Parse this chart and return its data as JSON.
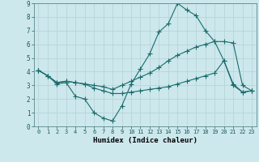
{
  "background_color": "#cce8ed",
  "grid_color": "#b8d4d8",
  "line_color": "#1a6b6b",
  "xlabel": "Humidex (Indice chaleur)",
  "xlim": [
    -0.5,
    23.5
  ],
  "ylim": [
    0,
    9
  ],
  "xticks": [
    0,
    1,
    2,
    3,
    4,
    5,
    6,
    7,
    8,
    9,
    10,
    11,
    12,
    13,
    14,
    15,
    16,
    17,
    18,
    19,
    20,
    21,
    22,
    23
  ],
  "yticks": [
    0,
    1,
    2,
    3,
    4,
    5,
    6,
    7,
    8,
    9
  ],
  "line1_x": [
    0,
    1,
    2,
    3,
    4,
    5,
    6,
    7,
    8,
    9,
    10,
    11,
    12,
    13,
    14,
    15,
    16,
    17,
    18,
    19,
    20,
    21,
    22,
    23
  ],
  "line1_y": [
    4.1,
    3.7,
    3.1,
    3.2,
    2.2,
    2.0,
    1.0,
    0.6,
    0.4,
    1.5,
    3.1,
    4.2,
    5.3,
    6.9,
    7.5,
    9.0,
    8.5,
    8.1,
    7.0,
    6.2,
    4.8,
    3.1,
    2.5,
    2.6
  ],
  "line2_x": [
    0,
    1,
    2,
    3,
    4,
    5,
    6,
    7,
    8,
    9,
    10,
    11,
    12,
    13,
    14,
    15,
    16,
    17,
    18,
    19,
    20,
    21,
    22,
    23
  ],
  "line2_y": [
    4.1,
    3.7,
    3.2,
    3.3,
    3.2,
    3.1,
    3.0,
    2.9,
    2.7,
    3.0,
    3.3,
    3.6,
    3.9,
    4.3,
    4.8,
    5.2,
    5.5,
    5.8,
    6.0,
    6.2,
    6.2,
    6.1,
    3.0,
    2.6
  ],
  "line3_x": [
    0,
    1,
    2,
    3,
    4,
    5,
    6,
    7,
    8,
    9,
    10,
    11,
    12,
    13,
    14,
    15,
    16,
    17,
    18,
    19,
    20,
    21,
    22,
    23
  ],
  "line3_y": [
    4.1,
    3.7,
    3.2,
    3.3,
    3.2,
    3.1,
    2.8,
    2.6,
    2.4,
    2.4,
    2.5,
    2.6,
    2.7,
    2.8,
    2.9,
    3.1,
    3.3,
    3.5,
    3.7,
    3.9,
    4.8,
    3.0,
    2.5,
    2.6
  ]
}
